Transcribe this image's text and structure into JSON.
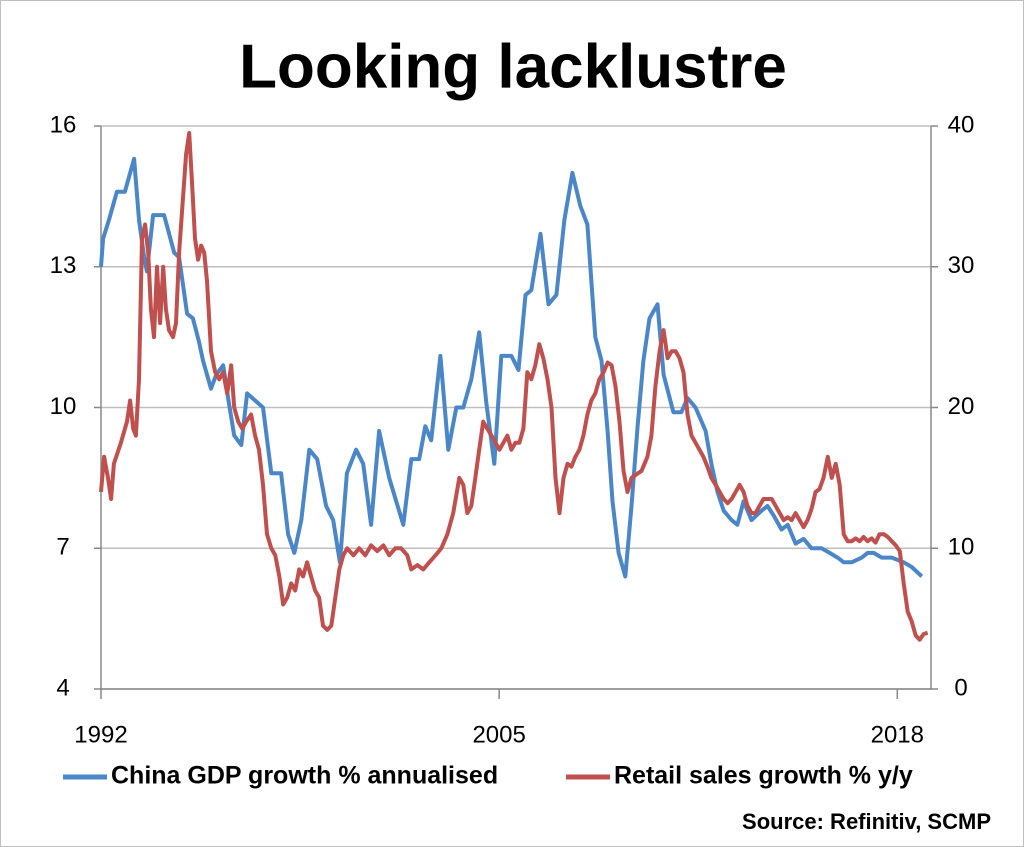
{
  "chart_data": {
    "type": "line",
    "title": "Looking lacklustre",
    "source": "Source: Refinitiv, SCMP",
    "xlim": [
      1992,
      2019.1
    ],
    "xticks": [
      1992,
      2005,
      2018
    ],
    "ylim": [
      4,
      16
    ],
    "yticks": [
      4,
      7,
      10,
      13,
      16
    ],
    "y2lim": [
      0,
      40
    ],
    "y2ticks": [
      0,
      10,
      20,
      30,
      40
    ],
    "grid": true,
    "legend": "bottom",
    "series": [
      {
        "name": "China GDP growth % annualised",
        "color": "#4a86c8",
        "x": [
          1992.0,
          1992.07,
          1992.26,
          1992.52,
          1992.78,
          1993.08,
          1993.24,
          1993.41,
          1993.5,
          1993.7,
          1994.06,
          1994.39,
          1994.55,
          1994.81,
          1995.0,
          1995.2,
          1995.33,
          1995.59,
          1995.76,
          1995.99,
          1996.15,
          1996.35,
          1996.58,
          1996.77,
          1997.29,
          1997.56,
          1997.88,
          1998.11,
          1998.31,
          1998.54,
          1998.8,
          1999.06,
          1999.35,
          1999.58,
          1999.8,
          2000.03,
          2000.33,
          2000.56,
          2000.82,
          2001.08,
          2001.41,
          2001.87,
          2002.13,
          2002.39,
          2002.59,
          2002.78,
          2003.08,
          2003.34,
          2003.6,
          2003.83,
          2004.09,
          2004.35,
          2004.58,
          2004.84,
          2005.07,
          2005.4,
          2005.63,
          2005.86,
          2006.05,
          2006.35,
          2006.61,
          2006.87,
          2007.13,
          2007.39,
          2007.65,
          2007.88,
          2008.14,
          2008.34,
          2008.54,
          2008.7,
          2008.9,
          2009.12,
          2009.32,
          2009.52,
          2009.71,
          2009.91,
          2010.17,
          2010.37,
          2010.69,
          2010.95,
          2011.15,
          2011.41,
          2011.61,
          2011.74,
          2011.93,
          2012.13,
          2012.33,
          2012.59,
          2012.78,
          2012.98,
          2013.24,
          2013.57,
          2013.76,
          2013.96,
          2014.22,
          2014.42,
          2014.68,
          2014.94,
          2015.2,
          2015.53,
          2015.79,
          2016.05,
          2016.25,
          2016.51,
          2016.84,
          2017.03,
          2017.23,
          2017.49,
          2017.82,
          2018.21,
          2018.47,
          2018.8
        ],
        "values": [
          13.0,
          13.6,
          14.0,
          14.6,
          14.6,
          15.3,
          14.0,
          13.2,
          12.9,
          14.1,
          14.1,
          13.3,
          13.2,
          12.0,
          11.9,
          11.4,
          11.0,
          10.4,
          10.7,
          10.9,
          10.2,
          9.4,
          9.2,
          10.3,
          10.0,
          8.6,
          8.6,
          7.3,
          6.9,
          7.6,
          9.1,
          8.9,
          7.9,
          7.6,
          6.7,
          8.6,
          9.1,
          8.8,
          7.5,
          9.5,
          8.5,
          7.5,
          8.9,
          8.9,
          9.6,
          9.3,
          11.1,
          9.1,
          10.0,
          10.0,
          10.6,
          11.6,
          10.1,
          8.8,
          11.1,
          11.1,
          10.8,
          12.4,
          12.5,
          13.7,
          12.2,
          12.4,
          14.0,
          15.0,
          14.3,
          13.9,
          11.5,
          11.0,
          9.5,
          8.0,
          6.9,
          6.4,
          7.9,
          9.6,
          11.0,
          11.9,
          12.2,
          10.7,
          9.9,
          9.9,
          10.2,
          10.0,
          9.7,
          9.5,
          8.8,
          8.2,
          7.8,
          7.6,
          7.5,
          8.0,
          7.6,
          7.8,
          7.9,
          7.7,
          7.4,
          7.5,
          7.1,
          7.2,
          7.0,
          7.0,
          6.9,
          6.8,
          6.7,
          6.7,
          6.8,
          6.9,
          6.9,
          6.8,
          6.8,
          6.7,
          6.6,
          6.4
        ]
      },
      {
        "name": "Retail sales growth % y/y",
        "color": "#c0504d",
        "axis": "y2",
        "x": [
          1992.0,
          1992.1,
          1992.23,
          1992.33,
          1992.42,
          1992.65,
          1992.85,
          1992.95,
          1993.05,
          1993.14,
          1993.24,
          1993.34,
          1993.44,
          1993.54,
          1993.63,
          1993.73,
          1993.83,
          1993.93,
          1994.03,
          1994.12,
          1994.22,
          1994.35,
          1994.45,
          1994.55,
          1994.68,
          1994.78,
          1994.88,
          1994.97,
          1995.07,
          1995.17,
          1995.27,
          1995.37,
          1995.46,
          1995.59,
          1995.73,
          1995.86,
          1995.99,
          1996.12,
          1996.25,
          1996.35,
          1996.48,
          1996.61,
          1996.74,
          1996.9,
          1997.03,
          1997.16,
          1997.29,
          1997.42,
          1997.56,
          1997.69,
          1997.82,
          1997.95,
          1998.08,
          1998.21,
          1998.34,
          1998.47,
          1998.6,
          1998.73,
          1998.86,
          1998.99,
          1999.12,
          1999.25,
          1999.39,
          1999.52,
          1999.65,
          1999.78,
          1999.91,
          2000.04,
          2000.24,
          2000.43,
          2000.63,
          2000.82,
          2001.02,
          2001.22,
          2001.41,
          2001.61,
          2001.8,
          2002.0,
          2002.13,
          2002.33,
          2002.52,
          2002.72,
          2002.92,
          2003.11,
          2003.31,
          2003.5,
          2003.7,
          2003.83,
          2003.96,
          2004.09,
          2004.22,
          2004.35,
          2004.48,
          2004.61,
          2004.75,
          2004.88,
          2005.01,
          2005.14,
          2005.27,
          2005.4,
          2005.53,
          2005.66,
          2005.79,
          2005.92,
          2006.05,
          2006.18,
          2006.31,
          2006.44,
          2006.58,
          2006.71,
          2006.84,
          2006.97,
          2007.1,
          2007.23,
          2007.36,
          2007.49,
          2007.62,
          2007.75,
          2007.88,
          2008.01,
          2008.14,
          2008.27,
          2008.41,
          2008.54,
          2008.67,
          2008.8,
          2008.93,
          2009.06,
          2009.19,
          2009.32,
          2009.45,
          2009.65,
          2009.84,
          2009.97,
          2010.1,
          2010.24,
          2010.37,
          2010.5,
          2010.63,
          2010.76,
          2010.89,
          2011.02,
          2011.15,
          2011.28,
          2011.41,
          2011.54,
          2011.67,
          2011.8,
          2011.93,
          2012.07,
          2012.2,
          2012.33,
          2012.46,
          2012.59,
          2012.72,
          2012.85,
          2012.98,
          2013.11,
          2013.24,
          2013.37,
          2013.5,
          2013.63,
          2013.76,
          2013.9,
          2014.03,
          2014.16,
          2014.29,
          2014.42,
          2014.55,
          2014.68,
          2014.81,
          2014.94,
          2015.07,
          2015.2,
          2015.33,
          2015.46,
          2015.59,
          2015.73,
          2015.86,
          2015.99,
          2016.12,
          2016.25,
          2016.38,
          2016.51,
          2016.64,
          2016.77,
          2016.9,
          2017.03,
          2017.16,
          2017.29,
          2017.42,
          2017.56,
          2017.69,
          2017.82,
          2017.95,
          2018.08,
          2018.21,
          2018.34,
          2018.47,
          2018.6,
          2018.73,
          2018.86,
          2018.99
        ],
        "values": [
          14,
          16.5,
          15,
          13.5,
          16,
          17.5,
          19,
          20.5,
          18.5,
          18,
          22,
          32,
          33,
          31,
          27,
          25,
          30,
          26,
          30,
          27,
          25.5,
          25,
          26,
          31,
          35,
          38,
          39.5,
          36,
          32,
          30.5,
          31.5,
          31,
          29,
          24,
          22.5,
          22,
          22.5,
          21,
          23,
          20,
          19,
          18.5,
          19,
          19.5,
          18,
          17,
          14.5,
          11,
          10,
          9.5,
          8,
          6,
          6.5,
          7.5,
          7,
          8.5,
          8,
          9,
          8,
          7,
          6.5,
          4.5,
          4.2,
          4.5,
          6.5,
          8.5,
          9.5,
          10,
          9.5,
          10,
          9.5,
          10.2,
          9.8,
          10.2,
          9.5,
          10,
          10,
          9.5,
          8.5,
          8.8,
          8.5,
          9,
          9.5,
          10,
          11,
          12.5,
          15,
          14.5,
          12.5,
          13,
          15,
          17,
          19,
          18.5,
          18,
          17.5,
          17,
          17.5,
          18,
          17,
          17.5,
          17.5,
          18.5,
          22.5,
          22,
          23,
          24.5,
          23.5,
          22,
          20,
          15,
          12.5,
          15,
          16,
          15.8,
          16.5,
          17,
          18,
          19.5,
          20.5,
          21,
          22,
          22.5,
          23.2,
          23,
          21.5,
          19,
          15.5,
          14,
          15,
          15.2,
          15.5,
          16.5,
          18,
          21.5,
          24,
          25.5,
          23.5,
          24,
          24,
          23.5,
          22.5,
          19.5,
          18,
          17.5,
          17,
          16.5,
          15.8,
          15,
          14.5,
          14,
          13.5,
          13.2,
          13.5,
          14,
          14.5,
          14,
          13,
          12.5,
          12.5,
          13,
          13.5,
          13.5,
          13.5,
          13,
          12.5,
          12,
          12.2,
          12,
          12.5,
          12,
          11.5,
          12,
          12.8,
          14,
          14.2,
          15,
          16.5,
          15,
          16,
          14.5,
          11,
          10.5,
          10.5,
          10.7,
          10.5,
          10.8,
          10.5,
          10.7,
          10.4,
          11,
          11,
          10.8,
          10.5,
          10.2,
          9.8,
          7.5,
          5.5,
          4.8,
          3.8,
          3.5,
          3.9,
          4
        ]
      }
    ]
  }
}
